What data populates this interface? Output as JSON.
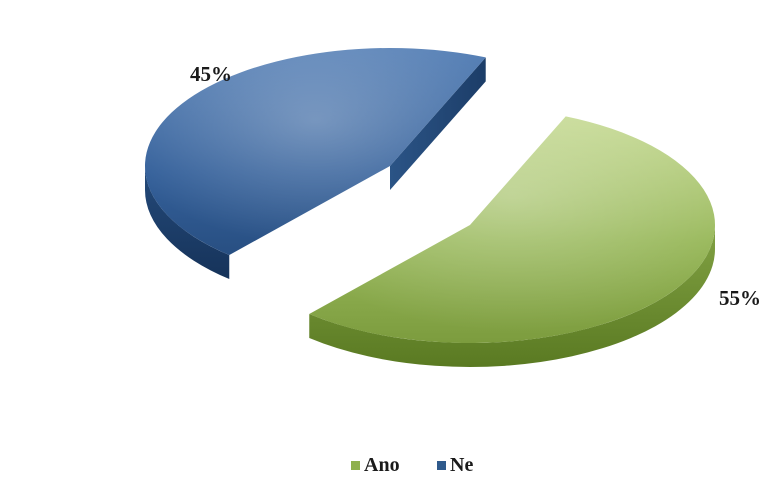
{
  "chart_data": {
    "type": "pie",
    "style": "3d-exploded",
    "categories": [
      "Ano",
      "Ne"
    ],
    "values": [
      55,
      45
    ],
    "data_labels": [
      "55%",
      "45%"
    ],
    "colors": [
      "#8fb04e",
      "#2f5a8c"
    ],
    "legend": {
      "position": "bottom",
      "entries": [
        "Ano",
        "Ne"
      ]
    },
    "title": "",
    "xlabel": "",
    "ylabel": ""
  }
}
